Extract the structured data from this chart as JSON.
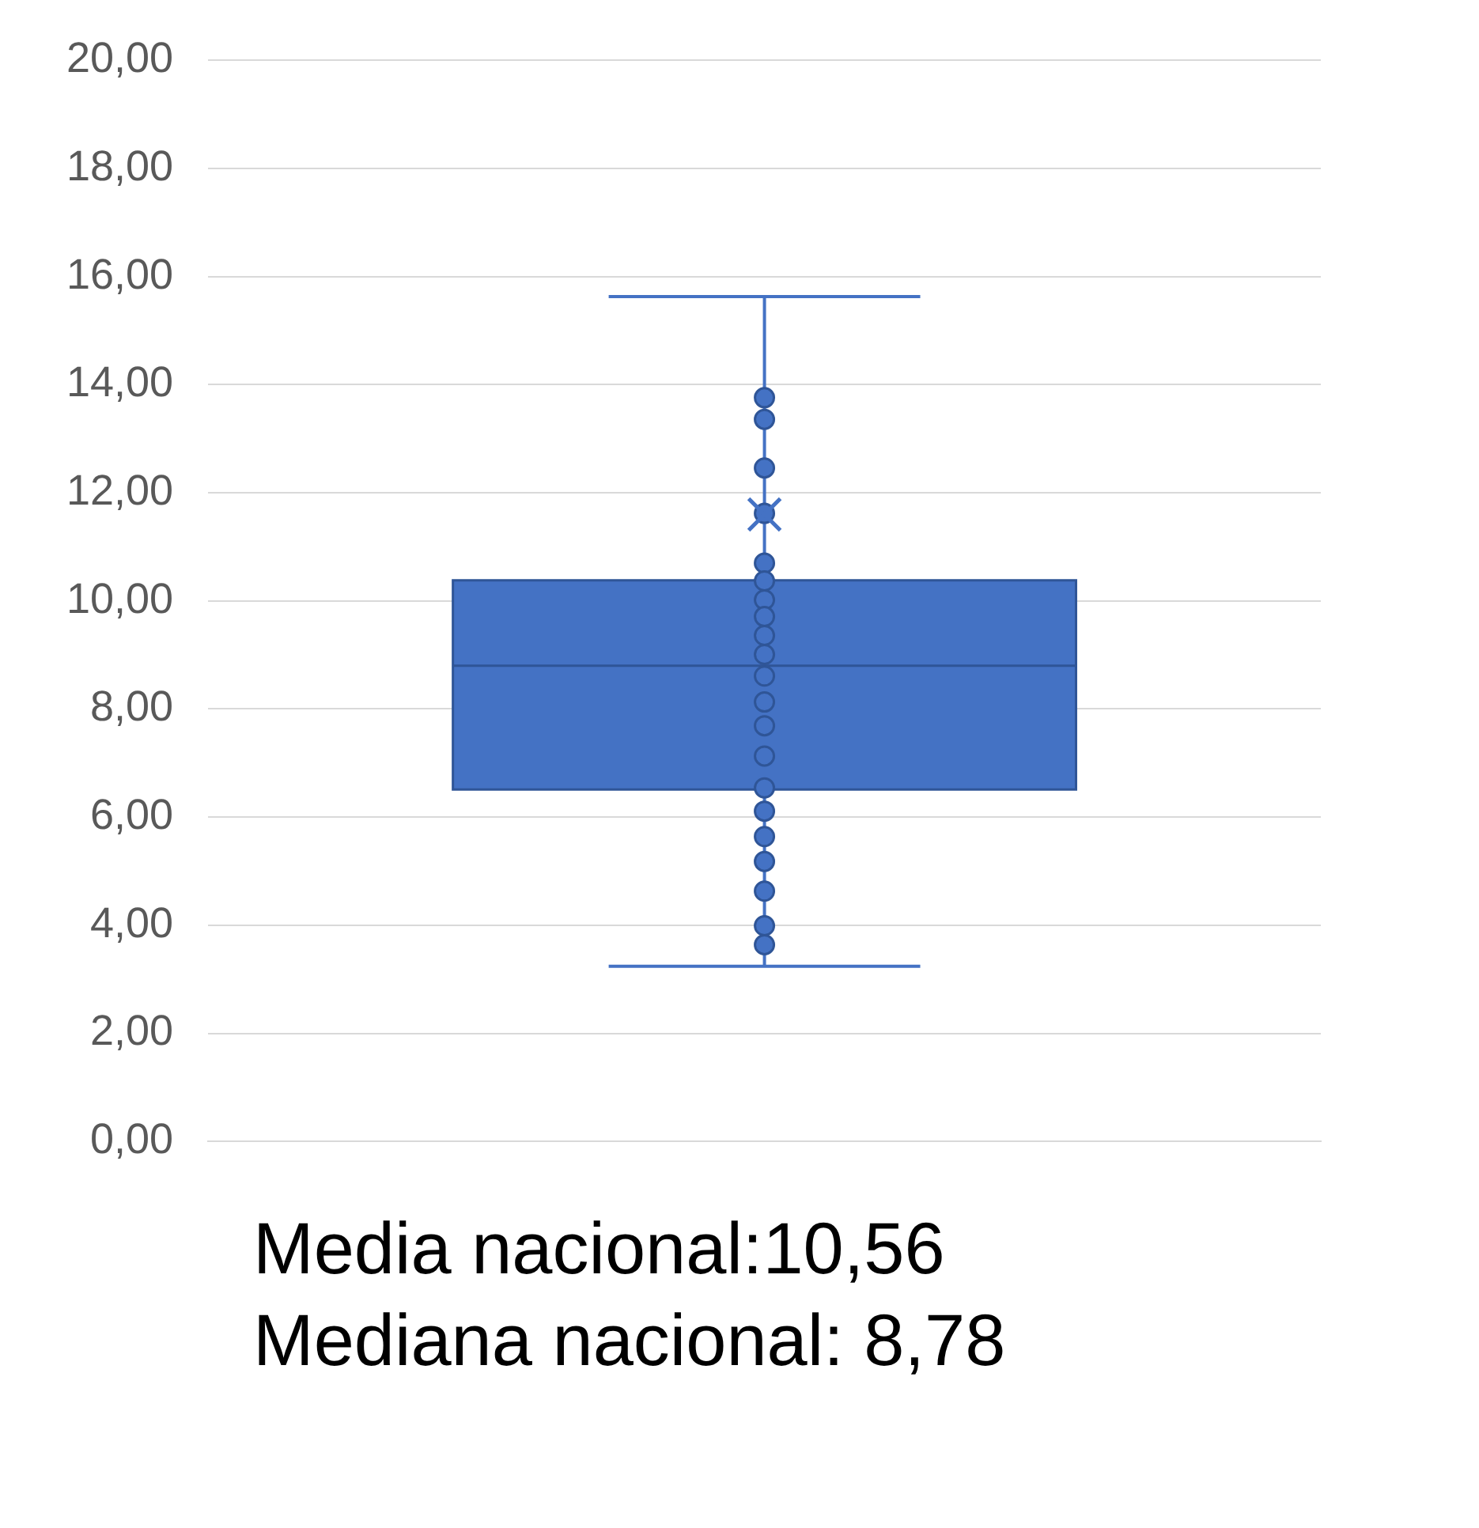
{
  "chart_data": {
    "type": "box",
    "categories": [
      null
    ],
    "boxes": [
      {
        "low": 3.24,
        "q1": 6.51,
        "median": 8.8,
        "q3": 10.38,
        "high": 15.63,
        "mean": 11.6
      }
    ],
    "color": "#4472c4",
    "series": [
      {
        "type": "scatter",
        "color": "#4472c4",
        "x": [
          null,
          null,
          null,
          null,
          null,
          null,
          null,
          null,
          null,
          null,
          null,
          null,
          null,
          null,
          null,
          null,
          null,
          null,
          null,
          null,
          null
        ],
        "values": [
          13.76,
          13.36,
          12.46,
          11.62,
          10.7,
          10.37,
          10.02,
          9.71,
          9.36,
          9.01,
          8.61,
          8.13,
          7.69,
          7.13,
          6.54,
          6.11,
          5.64,
          5.18,
          4.63,
          3.99,
          3.64
        ]
      }
    ],
    "marker": "circle",
    "ylim": [
      0,
      20
    ],
    "yticks": [
      {
        "value": 0,
        "label": "0,00"
      },
      {
        "value": 2,
        "label": "2,00"
      },
      {
        "value": 4,
        "label": "4,00"
      },
      {
        "value": 6,
        "label": "6,00"
      },
      {
        "value": 8,
        "label": "8,00"
      },
      {
        "value": 10,
        "label": "10,00"
      },
      {
        "value": 12,
        "label": "12,00"
      },
      {
        "value": 14,
        "label": "14,00"
      },
      {
        "value": 16,
        "label": "16,00"
      },
      {
        "value": 18,
        "label": "18,00"
      },
      {
        "value": 20,
        "label": "20,00"
      }
    ],
    "grid": "y",
    "annotations": [
      "Media nacional:10,56",
      "Mediana nacional: 8,78"
    ]
  }
}
